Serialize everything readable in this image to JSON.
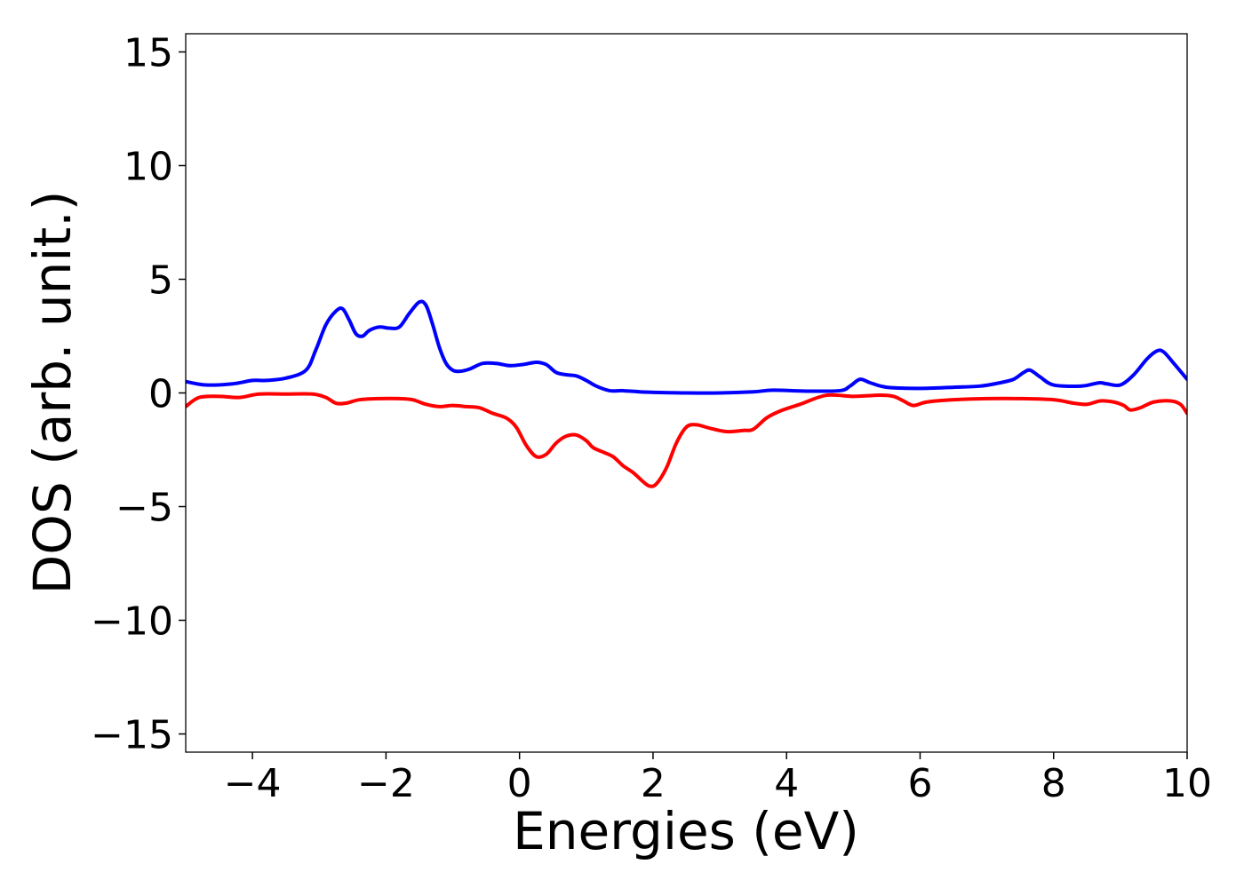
{
  "chart_data": {
    "type": "line",
    "title": "",
    "xlabel": "Energies (eV)",
    "ylabel": "DOS (arb. unit.)",
    "xlim": [
      -5,
      10
    ],
    "ylim": [
      -15.8,
      15.8
    ],
    "xticks": [
      -4,
      -2,
      0,
      2,
      4,
      6,
      8,
      10
    ],
    "xtick_labels": [
      "−4",
      "−2",
      "0",
      "2",
      "4",
      "6",
      "8",
      "10"
    ],
    "yticks": [
      -15,
      -10,
      -5,
      0,
      5,
      10,
      15
    ],
    "ytick_labels": [
      "−15",
      "−10",
      "−5",
      "0",
      "5",
      "10",
      "15"
    ],
    "grid": false,
    "legend": "none",
    "series": [
      {
        "color": "#0000ff",
        "x": [
          -5.0,
          -4.7,
          -4.3,
          -4.0,
          -3.8,
          -3.5,
          -3.2,
          -3.05,
          -2.9,
          -2.75,
          -2.65,
          -2.55,
          -2.45,
          -2.35,
          -2.25,
          -2.1,
          -1.95,
          -1.8,
          -1.65,
          -1.5,
          -1.4,
          -1.3,
          -1.2,
          -1.1,
          -1.0,
          -0.9,
          -0.75,
          -0.55,
          -0.35,
          -0.15,
          0.05,
          0.25,
          0.4,
          0.55,
          0.7,
          0.85,
          1.0,
          1.15,
          1.35,
          1.55,
          1.8,
          2.1,
          2.5,
          3.0,
          3.5,
          3.8,
          4.3,
          4.8,
          4.95,
          5.1,
          5.25,
          5.5,
          6.0,
          6.5,
          6.9,
          7.2,
          7.4,
          7.55,
          7.65,
          7.8,
          8.0,
          8.4,
          8.6,
          8.7,
          8.8,
          9.0,
          9.2,
          9.4,
          9.55,
          9.65,
          9.8,
          10.0
        ],
        "y": [
          0.5,
          0.35,
          0.4,
          0.55,
          0.55,
          0.65,
          1.0,
          1.9,
          3.0,
          3.6,
          3.7,
          3.2,
          2.6,
          2.5,
          2.75,
          2.9,
          2.85,
          2.9,
          3.5,
          4.0,
          3.85,
          3.0,
          2.0,
          1.3,
          1.0,
          0.95,
          1.05,
          1.3,
          1.3,
          1.2,
          1.25,
          1.35,
          1.25,
          0.9,
          0.8,
          0.75,
          0.55,
          0.3,
          0.1,
          0.1,
          0.05,
          0.02,
          0.0,
          0.0,
          0.05,
          0.12,
          0.08,
          0.1,
          0.3,
          0.6,
          0.45,
          0.25,
          0.2,
          0.25,
          0.3,
          0.45,
          0.6,
          0.9,
          1.0,
          0.7,
          0.35,
          0.3,
          0.4,
          0.45,
          0.4,
          0.35,
          0.8,
          1.5,
          1.85,
          1.8,
          1.3,
          0.6
        ]
      },
      {
        "color": "#ff0000",
        "x": [
          -5.0,
          -4.8,
          -4.5,
          -4.2,
          -3.9,
          -3.5,
          -3.1,
          -2.9,
          -2.75,
          -2.6,
          -2.4,
          -2.1,
          -1.8,
          -1.6,
          -1.4,
          -1.2,
          -1.0,
          -0.8,
          -0.6,
          -0.4,
          -0.2,
          -0.05,
          0.1,
          0.25,
          0.4,
          0.55,
          0.7,
          0.85,
          1.0,
          1.1,
          1.25,
          1.4,
          1.55,
          1.7,
          1.85,
          1.95,
          2.05,
          2.2,
          2.35,
          2.5,
          2.65,
          2.85,
          3.1,
          3.35,
          3.5,
          3.7,
          3.9,
          4.2,
          4.6,
          5.0,
          5.4,
          5.6,
          5.75,
          5.9,
          6.1,
          6.5,
          7.0,
          7.5,
          8.0,
          8.3,
          8.5,
          8.7,
          8.9,
          9.05,
          9.15,
          9.3,
          9.5,
          9.75,
          9.9,
          10.0
        ],
        "y": [
          -0.6,
          -0.2,
          -0.15,
          -0.2,
          -0.05,
          -0.05,
          -0.05,
          -0.2,
          -0.45,
          -0.45,
          -0.3,
          -0.25,
          -0.25,
          -0.3,
          -0.5,
          -0.6,
          -0.55,
          -0.6,
          -0.65,
          -0.9,
          -1.1,
          -1.5,
          -2.3,
          -2.8,
          -2.7,
          -2.2,
          -1.9,
          -1.85,
          -2.1,
          -2.4,
          -2.6,
          -2.8,
          -3.2,
          -3.5,
          -3.9,
          -4.1,
          -4.0,
          -3.3,
          -2.2,
          -1.5,
          -1.4,
          -1.55,
          -1.7,
          -1.65,
          -1.6,
          -1.1,
          -0.8,
          -0.5,
          -0.1,
          -0.15,
          -0.1,
          -0.15,
          -0.35,
          -0.55,
          -0.4,
          -0.3,
          -0.25,
          -0.25,
          -0.3,
          -0.45,
          -0.5,
          -0.35,
          -0.4,
          -0.55,
          -0.75,
          -0.65,
          -0.4,
          -0.35,
          -0.5,
          -0.9
        ]
      }
    ]
  }
}
